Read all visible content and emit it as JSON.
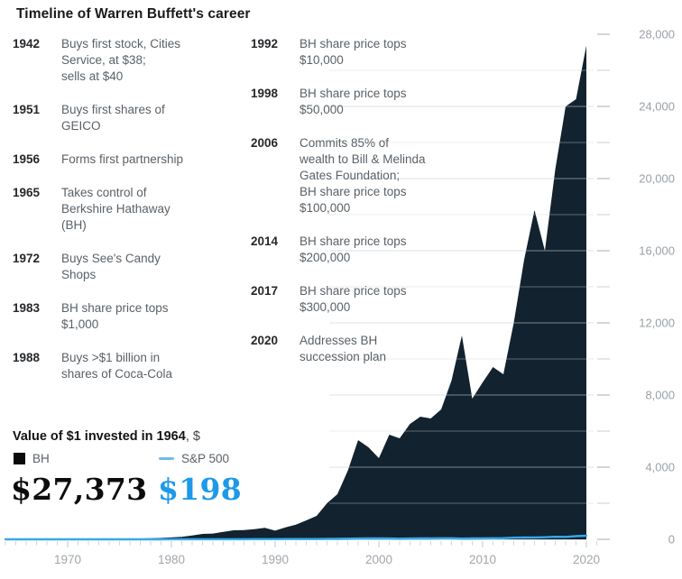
{
  "title": "Timeline of Warren Buffett's career",
  "timeline": {
    "left": [
      {
        "year": "1942",
        "text": "Buys first stock, Cities\nService, at $38;\nsells at $40"
      },
      {
        "year": "1951",
        "text": "Buys first shares of\nGEICO"
      },
      {
        "year": "1956",
        "text": "Forms first partnership"
      },
      {
        "year": "1965",
        "text": "Takes control of\nBerkshire Hathaway\n(BH)"
      },
      {
        "year": "1972",
        "text": "Buys See's Candy\nShops"
      },
      {
        "year": "1983",
        "text": "BH share price tops\n$1,000"
      },
      {
        "year": "1988",
        "text": "Buys >$1 billion in\nshares of Coca-Cola"
      }
    ],
    "right": [
      {
        "year": "1992",
        "text": "BH share price tops\n$10,000"
      },
      {
        "year": "1998",
        "text": "BH share price tops\n$50,000"
      },
      {
        "year": "2006",
        "text": "Commits 85% of\nwealth to Bill & Melinda\nGates Foundation;\nBH share price tops\n$100,000"
      },
      {
        "year": "2014",
        "text": "BH share price tops\n$200,000"
      },
      {
        "year": "2017",
        "text": "BH share price tops\n$300,000"
      },
      {
        "year": "2020",
        "text": "Addresses BH\nsuccession plan"
      }
    ]
  },
  "footer": {
    "value_label": "Value of $1 invested in 1964",
    "value_suffix": ", $",
    "bh_label": "BH",
    "sp_label": "S&P 500",
    "bh_value": "$27,373",
    "sp_value": "$198"
  },
  "colors": {
    "bh_area": "#12222f",
    "sp_line": "#35a9ea",
    "sp_value_text": "#1d99e9",
    "legend_dash": "#72bbeb",
    "axis_label": "#9aa0a6",
    "tick_minor": "#d2d6d9",
    "tick_major": "#bfc4c8",
    "baseline": "#d8dcdf"
  },
  "chart_data": {
    "type": "area",
    "title": "Value of $1 invested in 1964, $",
    "legend_position": "bottom-left",
    "grid": "faint horizontal lines every 2,000; short right-margin dashes every 2,000",
    "xlim": [
      1964,
      2021
    ],
    "ylim": [
      0,
      28000
    ],
    "x_labeled_ticks": [
      1970,
      1980,
      1990,
      2000,
      2010,
      2020
    ],
    "y_labeled_ticks": [
      0,
      4000,
      8000,
      12000,
      16000,
      20000,
      24000,
      28000
    ],
    "y_minor_step": 2000,
    "years": [
      1964,
      1965,
      1966,
      1967,
      1968,
      1969,
      1970,
      1971,
      1972,
      1973,
      1974,
      1975,
      1976,
      1977,
      1978,
      1979,
      1980,
      1981,
      1982,
      1983,
      1984,
      1985,
      1986,
      1987,
      1988,
      1989,
      1990,
      1991,
      1992,
      1993,
      1994,
      1995,
      1996,
      1997,
      1998,
      1999,
      2000,
      2001,
      2002,
      2003,
      2004,
      2005,
      2006,
      2007,
      2008,
      2009,
      2010,
      2011,
      2012,
      2013,
      2014,
      2015,
      2016,
      2017,
      2018,
      2019,
      2020
    ],
    "series": [
      {
        "name": "BH",
        "type": "area",
        "final_value_label": "$27,373",
        "values": [
          1,
          2,
          3,
          5,
          8,
          9,
          8,
          12,
          16,
          12,
          9,
          18,
          35,
          50,
          60,
          80,
          105,
          140,
          210,
          300,
          320,
          410,
          500,
          510,
          560,
          640,
          480,
          660,
          810,
          1050,
          1300,
          2000,
          2500,
          3800,
          5500,
          5100,
          4500,
          5800,
          5600,
          6400,
          6800,
          6700,
          7200,
          8800,
          11300,
          7800,
          8700,
          9550,
          9150,
          12000,
          15500,
          18250,
          16000,
          20500,
          24000,
          24400,
          27373
        ]
      },
      {
        "name": "S&P 500",
        "type": "line",
        "final_value_label": "$198",
        "values": [
          1,
          1.1,
          1.2,
          1.3,
          1.4,
          1.3,
          1.3,
          1.5,
          1.7,
          1.4,
          1.1,
          1.5,
          1.8,
          1.7,
          1.8,
          2.1,
          2.8,
          2.7,
          3.2,
          3.9,
          4.1,
          5.4,
          6.4,
          6.7,
          7.8,
          10.2,
          9.9,
          12.9,
          13.9,
          15.3,
          15.5,
          21.3,
          26.2,
          34.9,
          44.9,
          54.3,
          49.4,
          43.5,
          33.9,
          43.6,
          48.3,
          50.7,
          58.7,
          61.9,
          39,
          49.3,
          56.7,
          57.9,
          67.2,
          88.9,
          101,
          102.5,
          114.7,
          139.8,
          133.6,
          175.7,
          198
        ]
      }
    ]
  }
}
